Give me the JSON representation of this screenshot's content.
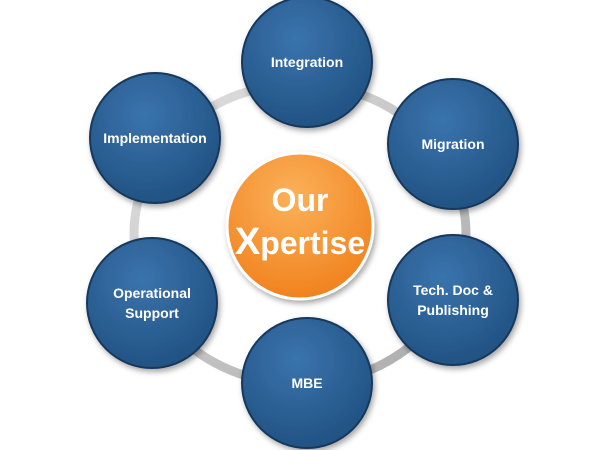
{
  "center": {
    "line1": "Our",
    "line2_initial": "X",
    "line2_rest": "pertise"
  },
  "nodes": [
    {
      "id": "integration",
      "lines": [
        "Integration"
      ]
    },
    {
      "id": "migration",
      "lines": [
        "Migration"
      ]
    },
    {
      "id": "tech-doc",
      "lines": [
        "Tech. Doc &",
        "Publishing"
      ]
    },
    {
      "id": "mbe",
      "lines": [
        "MBE"
      ]
    },
    {
      "id": "operational-support",
      "lines": [
        "Operational",
        "Support"
      ]
    },
    {
      "id": "implementation",
      "lines": [
        "Implementation"
      ]
    }
  ],
  "colors": {
    "node_fill": "#1f4f7f",
    "node_fill_light": "#3a74ad",
    "node_stroke": "#16395c",
    "center_fill": "#f07f1a",
    "center_fill_light": "#fbb15a",
    "ring": "#c9c9c9"
  }
}
